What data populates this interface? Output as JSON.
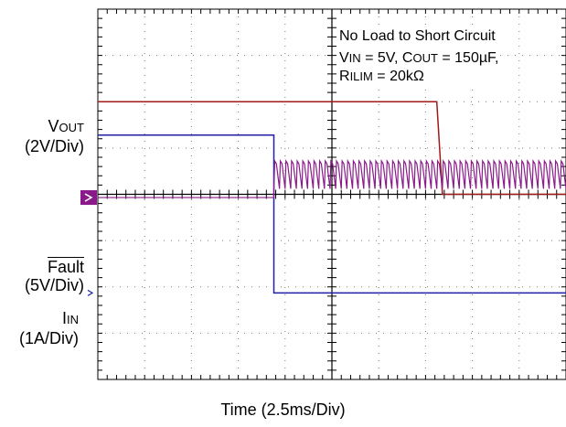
{
  "chart_data": {
    "type": "line",
    "xlabel": "Time (2.5ms/Div)",
    "x_divisions": 10,
    "y_divisions": 8,
    "annotation": {
      "line1": "No Load to Short Circuit",
      "line2_vin_label": "V",
      "line2_vin_sub": "IN",
      "line2_vin_value": " = 5V, C",
      "line2_cout_sub": "OUT",
      "line2_cout_value": " = 150µF,",
      "line3_label": "R",
      "line3_sub": "ILIM",
      "line3_value": " = 20kΩ"
    },
    "series": [
      {
        "name_main": "V",
        "name_sub": "OUT",
        "scale": "(2V/Div)",
        "color": "#1f1fa8",
        "x_ms": [
          0,
          9.4,
          9.4,
          25
        ],
        "y_div": [
          1.28,
          1.28,
          -2.13,
          -2.13
        ]
      },
      {
        "name_main": "Fault",
        "overline": true,
        "scale": "(5V/Div)",
        "color": "#a01a1a",
        "x_ms": [
          0,
          18.1,
          18.4,
          25
        ],
        "y_div": [
          2.0,
          2.0,
          0.0,
          0.0
        ]
      },
      {
        "name_main": "I",
        "name_sub": "IN",
        "scale": "(1A/Div)",
        "color": "#8a1a8a",
        "x_ms": [
          0,
          9.4,
          9.4,
          25
        ],
        "y_div": [
          -0.07,
          -0.07,
          0.12,
          0.12
        ],
        "ripple_period_ms": 0.3,
        "ripple_peak_div": 0.6
      }
    ]
  }
}
